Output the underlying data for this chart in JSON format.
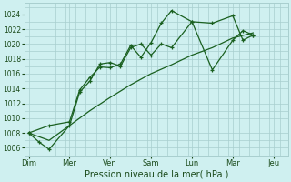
{
  "xlabel": "Pression niveau de la mer( hPa )",
  "background_color": "#cff0f0",
  "grid_color": "#a8cece",
  "line_color": "#1a6020",
  "ylim": [
    1005,
    1025.5
  ],
  "yticks": [
    1006,
    1008,
    1010,
    1012,
    1014,
    1016,
    1018,
    1020,
    1022,
    1024
  ],
  "ytick_fontsize": 5.5,
  "xtick_labels": [
    "Dim",
    "Mer",
    "Ven",
    "Sam",
    "Lun",
    "Mar",
    "Jeu"
  ],
  "xtick_positions": [
    0,
    1,
    2,
    3,
    4,
    5,
    6
  ],
  "xlim": [
    -0.1,
    6.35
  ],
  "line1_x": [
    0,
    0.25,
    0.5,
    1.0,
    1.25,
    1.5,
    1.75,
    2.0,
    2.25,
    2.5,
    2.75,
    3.0,
    3.25,
    3.5,
    4.0,
    4.5,
    5.0,
    5.25,
    5.5
  ],
  "line1_y": [
    1008,
    1006.8,
    1005.8,
    1009.0,
    1013.5,
    1015.0,
    1017.3,
    1017.5,
    1017.0,
    1019.5,
    1020.0,
    1018.5,
    1020.0,
    1019.5,
    1023.0,
    1016.5,
    1020.5,
    1021.8,
    1021.2
  ],
  "line2_x": [
    0,
    0.5,
    1.0,
    1.25,
    1.5,
    1.75,
    2.0,
    2.25,
    2.5,
    2.75,
    3.0,
    3.25,
    3.5,
    4.0,
    4.5,
    5.0,
    5.25,
    5.5
  ],
  "line2_y": [
    1008,
    1009.0,
    1009.5,
    1013.8,
    1015.5,
    1016.9,
    1016.8,
    1017.3,
    1019.8,
    1018.2,
    1020.2,
    1022.8,
    1024.5,
    1023.0,
    1022.8,
    1023.8,
    1020.5,
    1021.2
  ],
  "line3_x": [
    0,
    0.5,
    1.0,
    1.5,
    2.0,
    2.5,
    3.0,
    3.5,
    4.0,
    4.5,
    5.0,
    5.5
  ],
  "line3_y": [
    1008,
    1007.0,
    1009.0,
    1011.0,
    1012.8,
    1014.5,
    1016.0,
    1017.2,
    1018.5,
    1019.5,
    1020.8,
    1021.5
  ]
}
